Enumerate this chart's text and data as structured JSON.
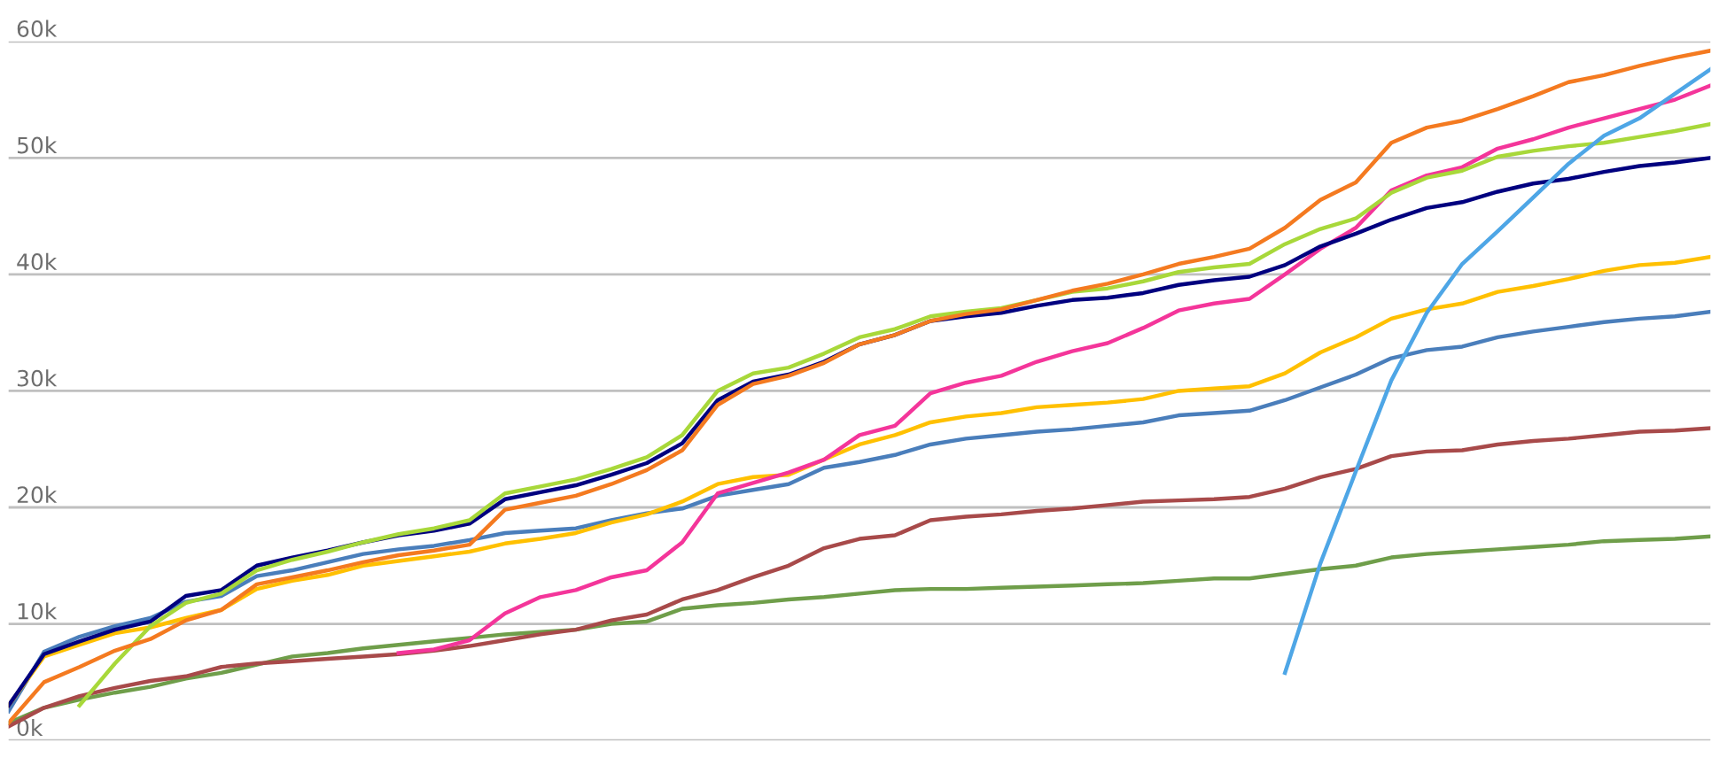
{
  "chart_data": {
    "type": "line",
    "categories": [
      null,
      null,
      null,
      null,
      null,
      null,
      null,
      null,
      null,
      null,
      null,
      null,
      null,
      null,
      null,
      null,
      null,
      null,
      null,
      null,
      null,
      null,
      null,
      null,
      null,
      null,
      null,
      null,
      null,
      null,
      null,
      null,
      null,
      null,
      null,
      null,
      null,
      null,
      null,
      null,
      null,
      null,
      null,
      null,
      null,
      null,
      null,
      null,
      null
    ],
    "ylim": [
      0,
      60
    ],
    "yticks": [
      {
        "value": 0,
        "label": "0k"
      },
      {
        "value": 10,
        "label": "10k"
      },
      {
        "value": 20,
        "label": "20k"
      },
      {
        "value": 30,
        "label": "30k"
      },
      {
        "value": 40,
        "label": "40k"
      },
      {
        "value": 50,
        "label": "50k"
      },
      {
        "value": 60,
        "label": "60k"
      }
    ],
    "grid": "y",
    "tick_labels": "y",
    "marker": "none",
    "line_style": "solid",
    "series": [
      {
        "color": "#6f9e4a",
        "values": [
          1.5,
          2.8,
          3.5,
          4.1,
          4.6,
          5.3,
          5.8,
          6.5,
          7.2,
          7.5,
          7.9,
          8.2,
          8.5,
          8.8,
          9.1,
          9.3,
          9.5,
          10.0,
          10.2,
          11.3,
          11.6,
          11.8,
          12.1,
          12.3,
          12.6,
          12.9,
          13.0,
          13.0,
          13.1,
          13.2,
          13.3,
          13.4,
          13.5,
          13.7,
          13.9,
          13.9,
          14.3,
          14.7,
          15.0,
          15.7,
          16.0,
          16.2,
          16.4,
          16.6,
          16.8,
          17.1,
          17.2,
          17.3,
          17.5
        ]
      },
      {
        "color": "#a84a4a",
        "values": [
          1.2,
          2.8,
          3.8,
          4.5,
          5.1,
          5.5,
          6.3,
          6.6,
          6.8,
          7.0,
          7.2,
          7.4,
          7.7,
          8.1,
          8.6,
          9.1,
          9.5,
          10.3,
          10.8,
          12.1,
          12.9,
          14.0,
          15.0,
          16.5,
          17.3,
          17.6,
          18.9,
          19.2,
          19.4,
          19.7,
          19.9,
          20.2,
          20.5,
          20.6,
          20.7,
          20.9,
          21.6,
          22.6,
          23.3,
          24.4,
          24.8,
          24.9,
          25.4,
          25.7,
          25.9,
          26.2,
          26.5,
          26.6,
          26.8
        ]
      },
      {
        "color": "#4a7ebb",
        "values": [
          2.5,
          7.6,
          8.9,
          9.8,
          10.5,
          11.9,
          12.4,
          14.1,
          14.6,
          15.3,
          16.0,
          16.4,
          16.7,
          17.2,
          17.8,
          18.0,
          18.2,
          18.9,
          19.5,
          19.9,
          21.0,
          21.5,
          22.0,
          23.4,
          23.9,
          24.5,
          25.4,
          25.9,
          26.2,
          26.5,
          26.7,
          27.0,
          27.3,
          27.9,
          28.1,
          28.3,
          29.2,
          30.3,
          31.4,
          32.8,
          33.5,
          33.8,
          34.6,
          35.1,
          35.5,
          35.9,
          36.2,
          36.4,
          36.8
        ]
      },
      {
        "color": "#ffc000",
        "values": [
          3.0,
          7.2,
          8.2,
          9.2,
          9.7,
          10.5,
          11.2,
          13.0,
          13.7,
          14.2,
          15.0,
          15.4,
          15.8,
          16.2,
          16.9,
          17.3,
          17.8,
          18.7,
          19.4,
          20.5,
          22.0,
          22.6,
          22.8,
          24.1,
          25.4,
          26.2,
          27.3,
          27.8,
          28.1,
          28.6,
          28.8,
          29.0,
          29.3,
          30.0,
          30.2,
          30.4,
          31.5,
          33.3,
          34.6,
          36.2,
          37.0,
          37.5,
          38.5,
          39.0,
          39.6,
          40.3,
          40.8,
          41.0,
          41.5
        ]
      },
      {
        "color": "#f4359a",
        "values": [
          null,
          null,
          null,
          null,
          null,
          null,
          null,
          null,
          null,
          null,
          null,
          7.5,
          7.8,
          8.6,
          10.9,
          12.3,
          12.9,
          14.0,
          14.6,
          17.0,
          21.2,
          22.1,
          23.0,
          24.1,
          26.2,
          27.0,
          29.8,
          30.7,
          31.3,
          32.5,
          33.4,
          34.1,
          35.4,
          36.9,
          37.5,
          37.9,
          40.0,
          42.2,
          44.0,
          47.2,
          48.5,
          49.2,
          50.8,
          51.6,
          52.6,
          53.4,
          54.2,
          55.0,
          56.2
        ]
      },
      {
        "color": "#00007f",
        "values": [
          3.0,
          7.4,
          8.5,
          9.5,
          10.2,
          12.4,
          12.9,
          15.0,
          15.7,
          16.3,
          17.0,
          17.6,
          18.0,
          18.6,
          20.7,
          21.3,
          21.9,
          22.8,
          23.8,
          25.5,
          29.2,
          30.8,
          31.4,
          32.5,
          34.0,
          34.8,
          36.0,
          36.4,
          36.7,
          37.3,
          37.8,
          38.0,
          38.4,
          39.1,
          39.5,
          39.8,
          40.8,
          42.4,
          43.5,
          44.7,
          45.7,
          46.2,
          47.1,
          47.8,
          48.2,
          48.8,
          49.3,
          49.6,
          50.0
        ]
      },
      {
        "color": "#a8d83a",
        "values": [
          null,
          null,
          3.0,
          6.6,
          9.8,
          11.8,
          12.6,
          14.6,
          15.5,
          16.2,
          17.0,
          17.7,
          18.2,
          18.9,
          21.2,
          21.8,
          22.4,
          23.3,
          24.3,
          26.2,
          30.0,
          31.5,
          32.0,
          33.2,
          34.6,
          35.3,
          36.4,
          36.8,
          37.1,
          37.8,
          38.5,
          38.8,
          39.4,
          40.2,
          40.6,
          40.9,
          42.6,
          43.9,
          44.8,
          47.0,
          48.3,
          48.9,
          50.1,
          50.6,
          51.0,
          51.3,
          51.8,
          52.3,
          52.9
        ]
      },
      {
        "color": "#f47a20",
        "values": [
          1.5,
          5.0,
          6.3,
          7.7,
          8.7,
          10.3,
          11.2,
          13.4,
          14.0,
          14.6,
          15.3,
          15.9,
          16.3,
          16.8,
          19.8,
          20.4,
          21.0,
          22.0,
          23.2,
          24.9,
          28.8,
          30.6,
          31.3,
          32.4,
          34.0,
          34.8,
          36.0,
          36.6,
          37.0,
          37.8,
          38.6,
          39.2,
          40.0,
          40.9,
          41.5,
          42.2,
          44.0,
          46.4,
          47.9,
          51.3,
          52.6,
          53.2,
          54.2,
          55.3,
          56.5,
          57.1,
          57.9,
          58.6,
          59.2
        ]
      },
      {
        "color": "#4ea6e6",
        "values": [
          null,
          null,
          null,
          null,
          null,
          null,
          null,
          null,
          null,
          null,
          null,
          null,
          null,
          null,
          null,
          null,
          null,
          null,
          null,
          null,
          null,
          null,
          null,
          null,
          null,
          null,
          null,
          null,
          null,
          null,
          null,
          null,
          null,
          null,
          null,
          null,
          5.8,
          15.2,
          23.1,
          30.9,
          36.7,
          40.9,
          43.7,
          46.6,
          49.5,
          51.9,
          53.4,
          55.5,
          57.6
        ]
      }
    ]
  }
}
